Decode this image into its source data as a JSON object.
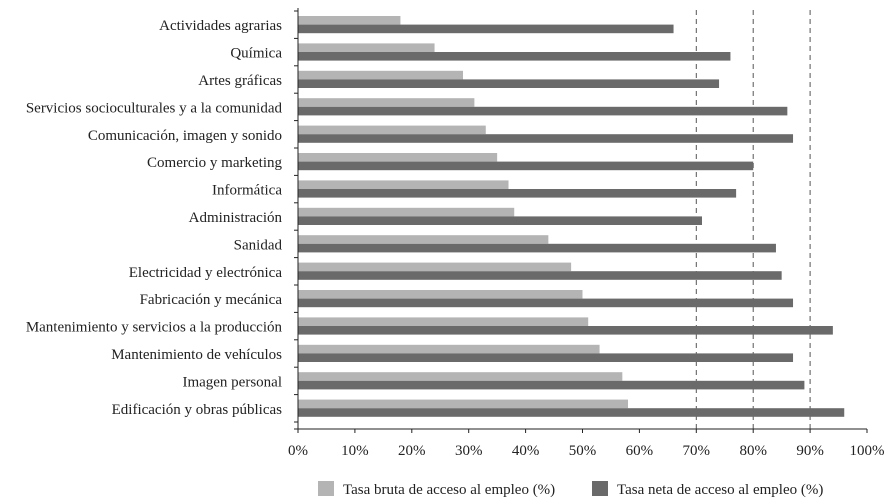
{
  "chart_data": {
    "type": "bar",
    "orientation": "horizontal",
    "categories": [
      "Actividades agrarias",
      "Química",
      "Artes gráficas",
      "Servicios socioculturales y a la comunidad",
      "Comunicación, imagen y sonido",
      "Comercio y marketing",
      "Informática",
      "Administración",
      "Sanidad",
      "Electricidad y electrónica",
      "Fabricación y mecánica",
      "Mantenimiento y servicios a la producción",
      "Mantenimiento de vehículos",
      "Imagen personal",
      "Edificación y obras públicas"
    ],
    "series": [
      {
        "name": "Tasa bruta de acceso al empleo (%)",
        "color": "#b4b4b4",
        "values": [
          18,
          24,
          29,
          31,
          33,
          35,
          37,
          38,
          44,
          48,
          50,
          51,
          53,
          57,
          58
        ]
      },
      {
        "name": "Tasa neta de acceso al empleo (%)",
        "color": "#6a6a6a",
        "values": [
          66,
          76,
          74,
          86,
          87,
          80,
          77,
          71,
          84,
          85,
          87,
          94,
          87,
          89,
          96
        ]
      }
    ],
    "xlim": [
      0,
      100
    ],
    "xticks": [
      "0%",
      "10%",
      "20%",
      "30%",
      "40%",
      "50%",
      "60%",
      "70%",
      "80%",
      "90%",
      "100%"
    ],
    "grid": {
      "x_dashed_at": [
        70,
        80,
        90
      ]
    },
    "legend_position": "bottom",
    "title": "",
    "xlabel": "",
    "ylabel": ""
  }
}
